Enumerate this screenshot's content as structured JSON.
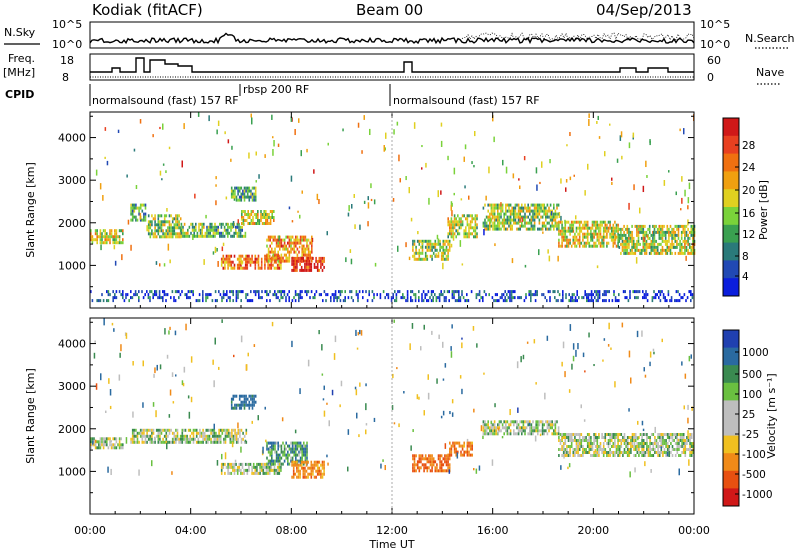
{
  "header": {
    "radar": "Kodiak (fitACF)",
    "beam": "Beam 00",
    "date": "04/Sep/2013"
  },
  "top_panels": {
    "nsky_label": "N.Sky",
    "nsky_ticks": [
      "10^5",
      "10^0"
    ],
    "nsearch_label": "N.Search",
    "nsearch_ticks": [
      "10^5",
      "10^0"
    ],
    "freq_label_line1": "Freq.",
    "freq_label_line2": "[MHz]",
    "freq_ticks": [
      "18",
      "8"
    ],
    "nave_label": "Nave",
    "nave_ticks": [
      "60",
      "0"
    ],
    "cpid_label": "CPID"
  },
  "cpid_segments": [
    {
      "label": "normalsound (fast) 157 RF",
      "start_hour": 0
    },
    {
      "label": "rbsp 200 RF",
      "start_hour": 6.0
    },
    {
      "label": "normalsound (fast) 157 RF",
      "start_hour": 12.0
    }
  ],
  "chart_data": [
    {
      "type": "heatmap",
      "panel": "power",
      "ylabel": "Slant Range [km]",
      "ylim": [
        0,
        4600
      ],
      "yticks": [
        1000,
        2000,
        3000,
        4000
      ],
      "xlim": [
        0,
        24
      ],
      "colorbar": {
        "label": "Power [dB]",
        "ticks": [
          "4",
          "8",
          "12",
          "16",
          "20",
          "24",
          "28"
        ],
        "colors": [
          "#0b1edc",
          "#2149b4",
          "#2a7a7a",
          "#3aa050",
          "#7ad23a",
          "#e0d020",
          "#f0a010",
          "#f07010",
          "#e84020",
          "#d01818"
        ]
      },
      "echo_regions": [
        {
          "t0": 0.0,
          "t1": 1.3,
          "r0": 1500,
          "r1": 1850,
          "level": 0.55
        },
        {
          "t0": 1.6,
          "t1": 2.2,
          "r0": 2050,
          "r1": 2450,
          "level": 0.35
        },
        {
          "t0": 2.3,
          "t1": 3.6,
          "r0": 1650,
          "r1": 2200,
          "level": 0.45
        },
        {
          "t0": 3.6,
          "t1": 6.2,
          "r0": 1650,
          "r1": 2000,
          "level": 0.4
        },
        {
          "t0": 5.6,
          "t1": 6.6,
          "r0": 2500,
          "r1": 2850,
          "level": 0.35
        },
        {
          "t0": 6.0,
          "t1": 7.3,
          "r0": 1950,
          "r1": 2300,
          "level": 0.55
        },
        {
          "t0": 5.2,
          "t1": 7.6,
          "r0": 900,
          "r1": 1250,
          "level": 0.75
        },
        {
          "t0": 7.0,
          "t1": 8.8,
          "r0": 1100,
          "r1": 1700,
          "level": 0.7
        },
        {
          "t0": 8.0,
          "t1": 9.3,
          "r0": 850,
          "r1": 1200,
          "level": 0.9
        },
        {
          "t0": 12.8,
          "t1": 14.3,
          "r0": 1150,
          "r1": 1600,
          "level": 0.45
        },
        {
          "t0": 14.2,
          "t1": 15.4,
          "r0": 1650,
          "r1": 2200,
          "level": 0.5
        },
        {
          "t0": 15.6,
          "t1": 18.6,
          "r0": 1850,
          "r1": 2450,
          "level": 0.45
        },
        {
          "t0": 18.6,
          "t1": 21.0,
          "r0": 1450,
          "r1": 2050,
          "level": 0.55
        },
        {
          "t0": 21.0,
          "t1": 24.0,
          "r0": 1250,
          "r1": 1950,
          "level": 0.5
        },
        {
          "t0": 0.0,
          "t1": 24.0,
          "r0": 150,
          "r1": 420,
          "level": 0.12
        }
      ]
    },
    {
      "type": "heatmap",
      "panel": "velocity",
      "ylabel": "Slant Range [km]",
      "xlabel": "Time UT",
      "ylim": [
        0,
        4600
      ],
      "yticks": [
        1000,
        2000,
        3000,
        4000
      ],
      "xlim": [
        0,
        24
      ],
      "xticks": [
        "00:00",
        "04:00",
        "08:00",
        "12:00",
        "16:00",
        "20:00",
        "00:00"
      ],
      "colorbar": {
        "label": "Velocity [m s⁻¹]",
        "ticks": [
          "1000",
          "500",
          "100",
          "25",
          "-25",
          "-100",
          "-500",
          "-1000"
        ],
        "colors": [
          "#2040b0",
          "#2a6aa0",
          "#3a8a50",
          "#6ac040",
          "#bebebe",
          "#bebebe",
          "#f0c020",
          "#f08a18",
          "#e85010",
          "#d01818"
        ]
      },
      "echo_regions": [
        {
          "t0": 0.0,
          "t1": 1.3,
          "r0": 1550,
          "r1": 1800,
          "velocity": 0
        },
        {
          "t0": 1.6,
          "t1": 6.2,
          "r0": 1700,
          "r1": 2000,
          "velocity": 0
        },
        {
          "t0": 5.6,
          "t1": 6.6,
          "r0": 2500,
          "r1": 2800,
          "velocity": 300
        },
        {
          "t0": 5.2,
          "t1": 7.6,
          "r0": 950,
          "r1": 1200,
          "velocity": 0
        },
        {
          "t0": 7.0,
          "t1": 8.6,
          "r0": 1150,
          "r1": 1700,
          "velocity": 150
        },
        {
          "t0": 8.0,
          "t1": 9.3,
          "r0": 850,
          "r1": 1250,
          "velocity": -400
        },
        {
          "t0": 12.8,
          "t1": 14.3,
          "r0": 1000,
          "r1": 1400,
          "velocity": -500
        },
        {
          "t0": 14.2,
          "t1": 15.2,
          "r0": 1350,
          "r1": 1700,
          "velocity": -450
        },
        {
          "t0": 15.6,
          "t1": 18.6,
          "r0": 1850,
          "r1": 2200,
          "velocity": 0
        },
        {
          "t0": 18.6,
          "t1": 24.0,
          "r0": 1350,
          "r1": 1900,
          "velocity": 0
        }
      ]
    }
  ]
}
